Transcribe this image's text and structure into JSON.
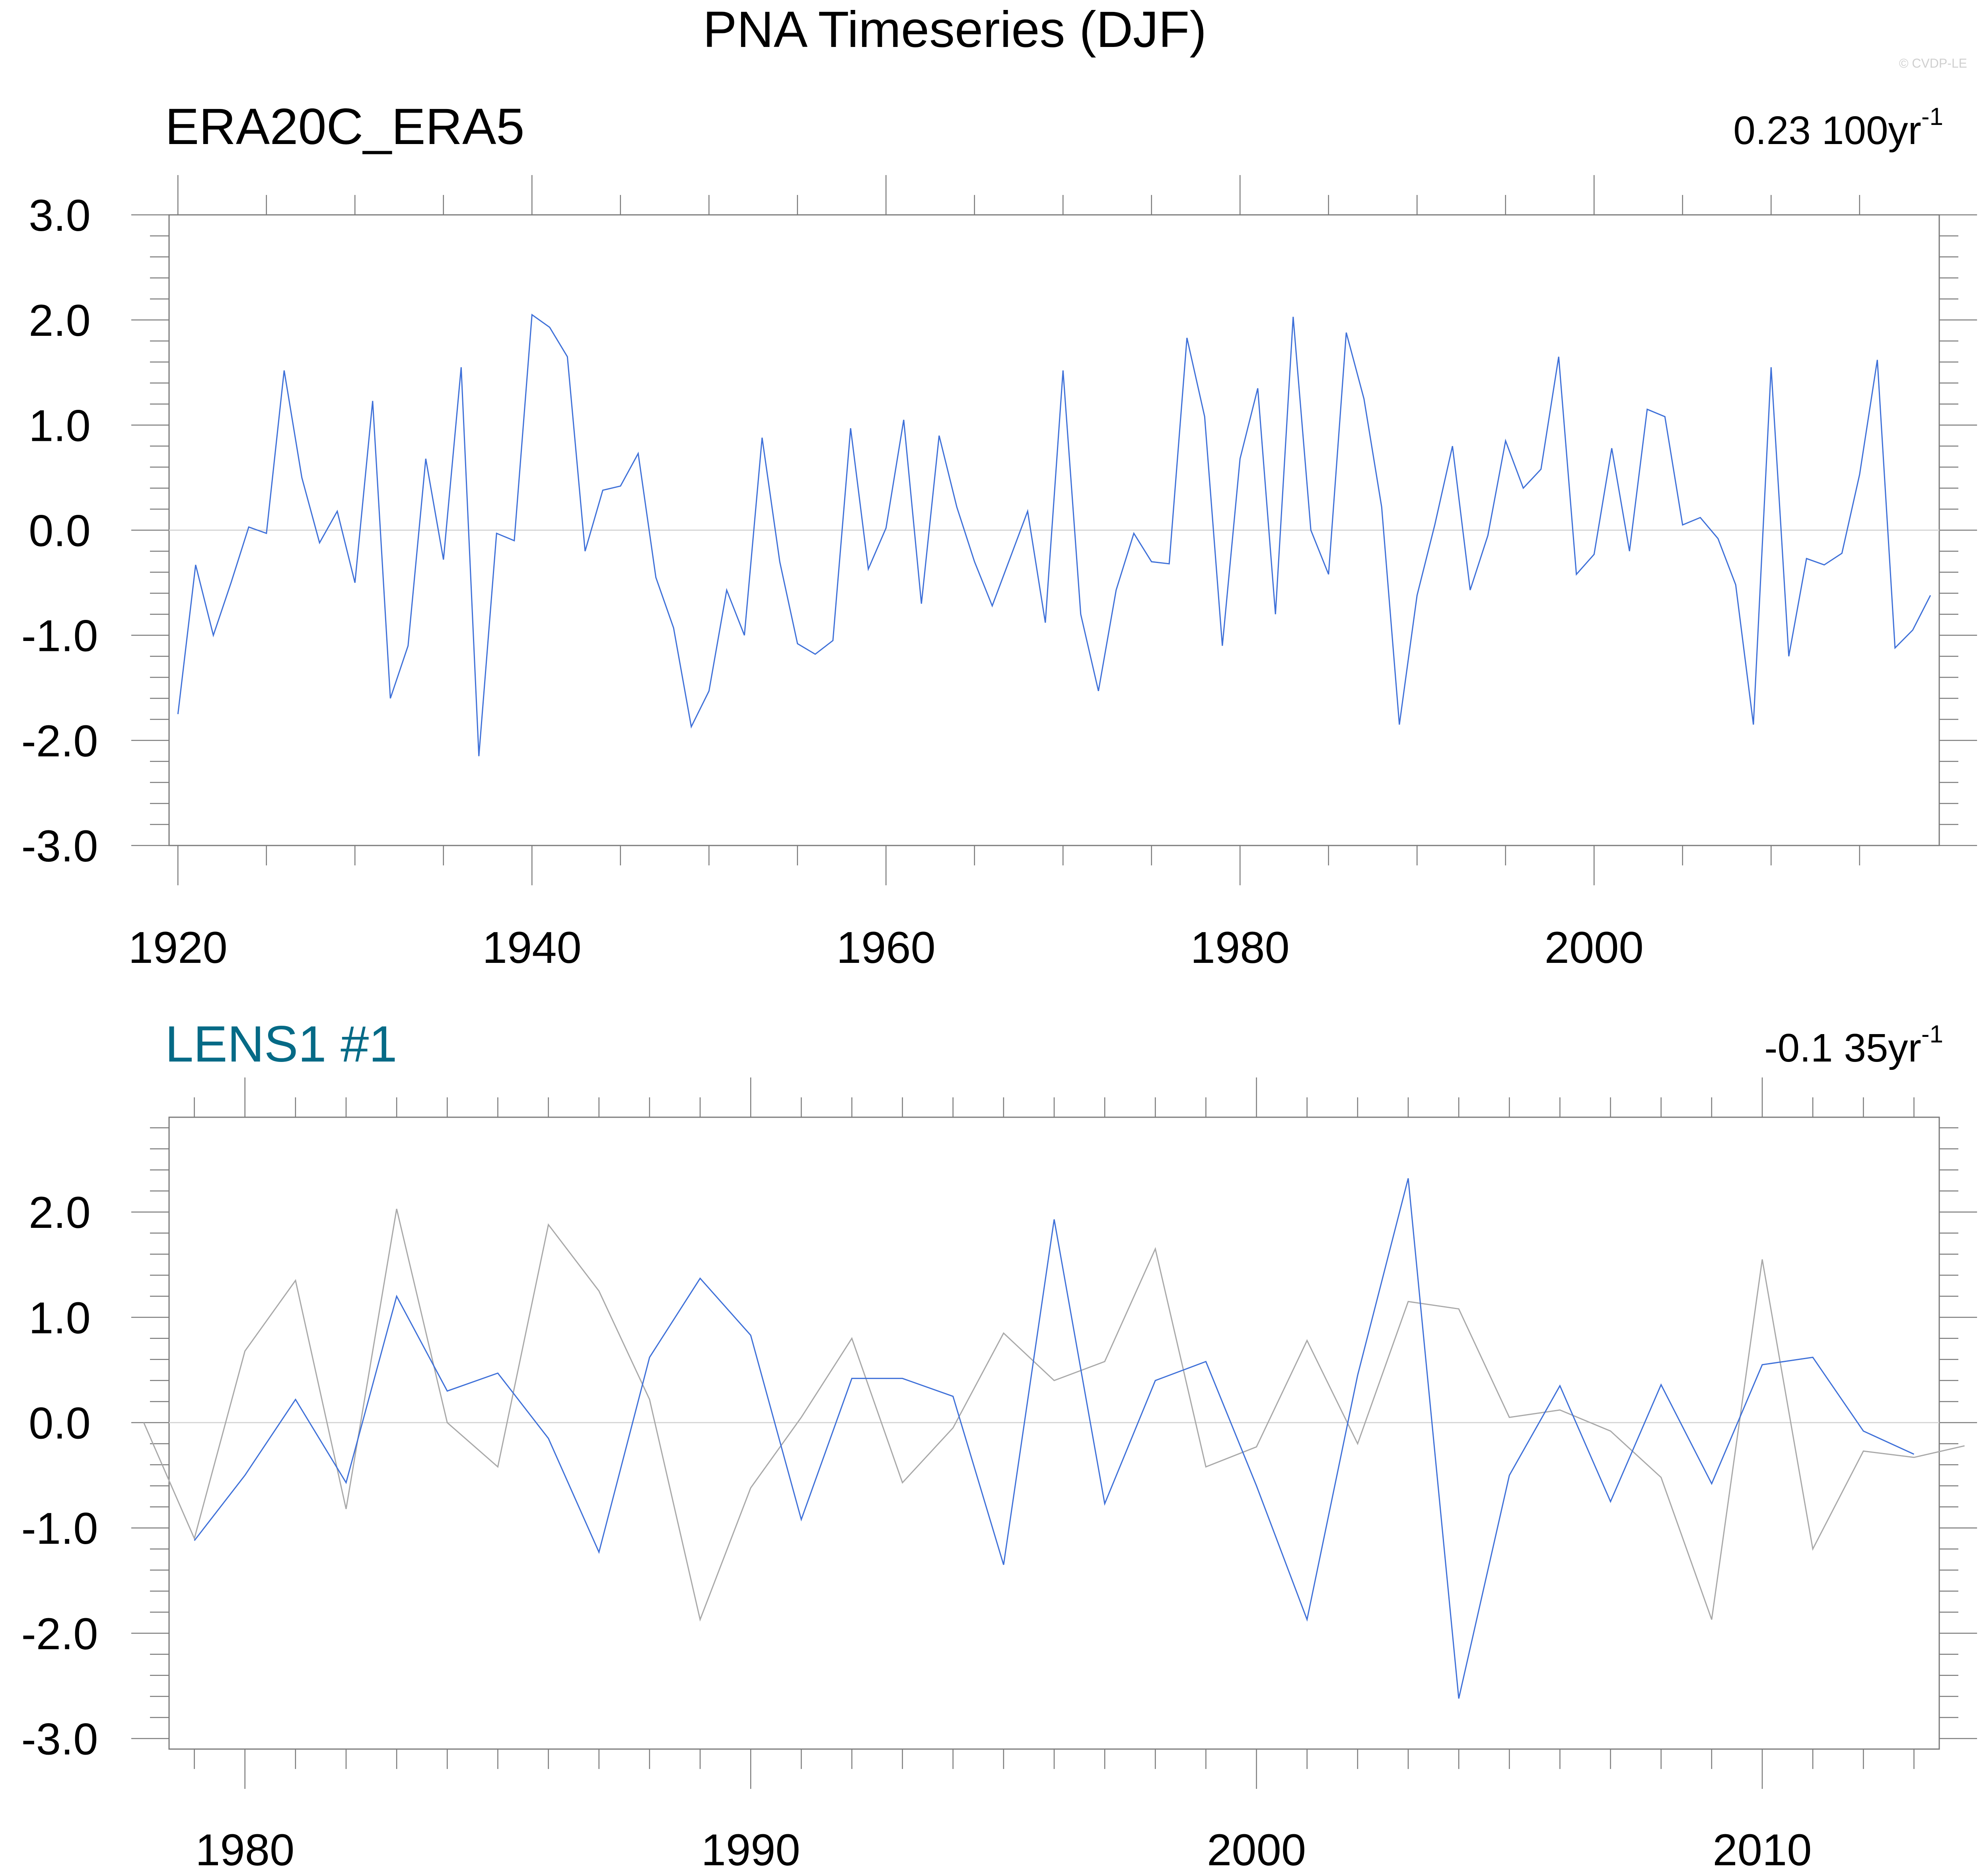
{
  "figure": {
    "title": "PNA Timeseries (DJF)",
    "watermark": "© CVDP-LE"
  },
  "chart_data": [
    {
      "type": "line",
      "panel_title": "ERA20C_ERA5",
      "trend_value": "0.23 100yr",
      "trend_exponent": "-1",
      "x_ticks": [
        1920,
        1940,
        1960,
        1980,
        2000
      ],
      "y_ticks": [
        "3.0",
        "2.0",
        "1.0",
        "0.0",
        "-1.0",
        "-2.0",
        "-3.0"
      ],
      "xlim": [
        1919.5,
        2019.5
      ],
      "ylim": [
        -3,
        3
      ],
      "zero_line": true,
      "series": [
        {
          "color": "#3d6fd8",
          "x_start": 1920,
          "values": [
            -1.75,
            -0.33,
            -1.0,
            -0.5,
            0.03,
            -0.03,
            1.52,
            0.5,
            -0.12,
            0.18,
            -0.5,
            1.23,
            -1.6,
            -1.1,
            0.68,
            -0.28,
            1.55,
            -2.15,
            -0.03,
            -0.1,
            2.05,
            1.93,
            1.65,
            -0.2,
            0.38,
            0.42,
            0.73,
            -0.45,
            -0.93,
            -1.87,
            -1.53,
            -0.57,
            -1.0,
            0.88,
            -0.3,
            -1.08,
            -1.18,
            -1.05,
            0.97,
            -0.37,
            0.02,
            1.05,
            -0.7,
            0.9,
            0.22,
            -0.3,
            -0.72,
            -0.27,
            0.18,
            -0.88,
            1.52,
            -0.8,
            -1.53,
            -0.57,
            -0.03,
            -0.3,
            -0.32,
            1.83,
            1.08,
            -1.1,
            0.68,
            1.35,
            -0.8,
            2.03,
            0.0,
            -0.42,
            1.88,
            1.25,
            0.22,
            -1.85,
            -0.62,
            0.05,
            0.8,
            -0.57,
            -0.05,
            0.85,
            0.4,
            0.58,
            1.65,
            -0.42,
            -0.23,
            0.78,
            -0.2,
            1.15,
            1.08,
            0.05,
            0.12,
            -0.08,
            -0.52,
            -1.85,
            1.55,
            -1.2,
            -0.27,
            -0.33,
            -0.22,
            0.53,
            1.62,
            -1.12,
            -0.95,
            -0.62
          ]
        }
      ]
    },
    {
      "type": "line",
      "panel_title": "LENS1 #1",
      "panel_title_color": "#056a86",
      "trend_value": "-0.1 35yr",
      "trend_exponent": "-1",
      "x_ticks": [
        1980,
        1990,
        2000,
        2010
      ],
      "y_ticks": [
        "2.0",
        "1.0",
        "0.0",
        "-1.0",
        "-2.0",
        "-3.0"
      ],
      "xlim": [
        1978.5,
        2013.5
      ],
      "ylim": [
        -3.1,
        2.9
      ],
      "zero_line": true,
      "series": [
        {
          "color": "#3d6fd8",
          "x_start": 1979,
          "values": [
            -1.12,
            -0.5,
            0.22,
            -0.57,
            1.2,
            0.3,
            0.47,
            -0.15,
            -1.23,
            0.62,
            1.37,
            0.83,
            -0.92,
            0.42,
            0.42,
            0.25,
            -1.35,
            1.93,
            -0.77,
            0.4,
            0.58,
            -0.6,
            -1.87,
            0.45,
            2.32,
            -2.62,
            -0.5,
            0.35,
            -0.75,
            0.36,
            -0.58,
            0.55,
            0.62,
            -0.08,
            -0.3
          ]
        },
        {
          "color": "#a8a8a8",
          "x_start": 1978,
          "values": [
            0.0,
            -1.1,
            0.68,
            1.35,
            -0.82,
            2.03,
            0.0,
            -0.42,
            1.88,
            1.25,
            0.22,
            -1.87,
            -0.62,
            0.05,
            0.8,
            -0.57,
            -0.05,
            0.85,
            0.4,
            0.58,
            1.65,
            -0.42,
            -0.23,
            0.78,
            -0.2,
            1.15,
            1.08,
            0.05,
            0.12,
            -0.08,
            -0.52,
            -1.87,
            1.55,
            -1.2,
            -0.27,
            -0.33,
            -0.22
          ]
        }
      ]
    }
  ]
}
